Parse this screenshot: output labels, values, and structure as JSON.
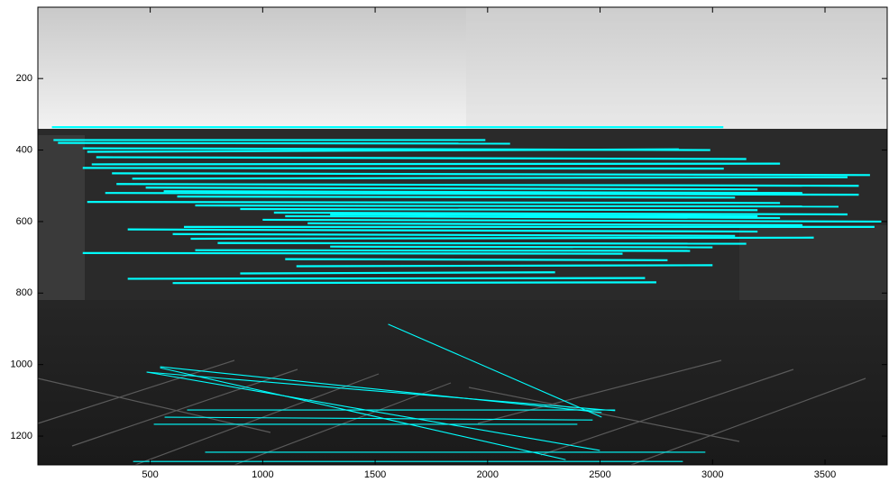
{
  "chart_data": {
    "type": "matches",
    "color": "#00ffff",
    "xlim": [
      0.5,
      3776.5
    ],
    "ylim": [
      0.5,
      1280.5
    ],
    "y_reversed": true,
    "xticks": [
      500,
      1000,
      1500,
      2000,
      2500,
      3000,
      3500
    ],
    "yticks": [
      200,
      400,
      600,
      800,
      1000,
      1200
    ],
    "x_start": [
      63,
      70,
      90,
      200,
      220,
      260,
      240,
      200,
      330,
      420,
      350,
      480,
      560,
      300,
      620,
      220,
      700,
      900,
      1050,
      1100,
      1000,
      1200,
      650,
      400,
      600,
      680,
      800,
      1300,
      700,
      200,
      1100,
      1150,
      900,
      400,
      600,
      1300,
      1558,
      544,
      484,
      544,
      484,
      664,
      564,
      516,
      744,
      424
    ],
    "y_start": [
      336,
      372,
      380,
      395,
      405,
      420,
      440,
      450,
      465,
      480,
      495,
      505,
      515,
      520,
      530,
      545,
      555,
      565,
      575,
      585,
      595,
      605,
      615,
      622,
      635,
      648,
      660,
      670,
      680,
      688,
      705,
      725,
      745,
      760,
      772,
      580,
      887,
      1006,
      1021,
      1009,
      1021,
      1127,
      1147,
      1167,
      1245,
      1271
    ],
    "x_end": [
      3048,
      1990,
      2100,
      2990,
      2850,
      3150,
      3300,
      3050,
      3700,
      3600,
      3650,
      3200,
      3400,
      3650,
      3100,
      3300,
      3560,
      3200,
      3600,
      3300,
      3750,
      3400,
      3720,
      3200,
      3100,
      3450,
      3150,
      3000,
      2900,
      2600,
      2800,
      3000,
      2300,
      2700,
      2750,
      3200,
      2507,
      2507,
      2567,
      2347,
      2499,
      2567,
      2467,
      2399,
      2968,
      2868
    ],
    "y_end": [
      336,
      372,
      382,
      400,
      398,
      425,
      438,
      452,
      470,
      476,
      500,
      510,
      520,
      525,
      533,
      548,
      558,
      568,
      580,
      590,
      600,
      610,
      615,
      628,
      640,
      645,
      662,
      672,
      682,
      690,
      708,
      722,
      742,
      758,
      770,
      585,
      1147,
      1134,
      1129,
      1266,
      1240,
      1127,
      1155,
      1167,
      1245,
      1271
    ]
  }
}
